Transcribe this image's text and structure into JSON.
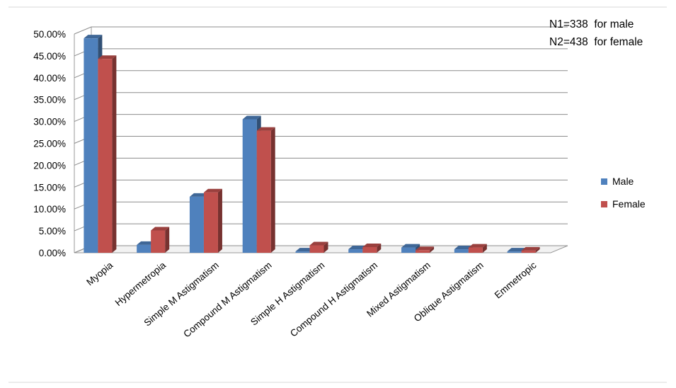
{
  "chart_data": {
    "type": "bar",
    "style": "3d-clustered-column",
    "categories": [
      "Myopia",
      "Hypermetropia",
      "Simple M Astigmatism",
      "Compound M Astigmatism",
      "Simple H Astigmatism",
      "Compound H Astigmatism",
      "Mixed Astigmatism",
      "Oblique Astigmatism",
      "Emmetropic"
    ],
    "series": [
      {
        "name": "Male",
        "color": "#4F81BD",
        "values": [
          0.49,
          0.018,
          0.128,
          0.305,
          0.003,
          0.008,
          0.012,
          0.008,
          0.003
        ]
      },
      {
        "name": "Female",
        "color": "#C0504D",
        "values": [
          0.443,
          0.051,
          0.138,
          0.279,
          0.017,
          0.013,
          0.006,
          0.012,
          0.005
        ]
      }
    ],
    "ylim": [
      0,
      0.5
    ],
    "yticks": [
      "0.00%",
      "5.00%",
      "10.00%",
      "15.00%",
      "20.00%",
      "25.00%",
      "30.00%",
      "35.00%",
      "40.00%",
      "45.00%",
      "50.00%"
    ],
    "grid": true,
    "legend_position": "right",
    "annotations": [
      "N1=338  for male",
      "N2=438  for female"
    ]
  }
}
